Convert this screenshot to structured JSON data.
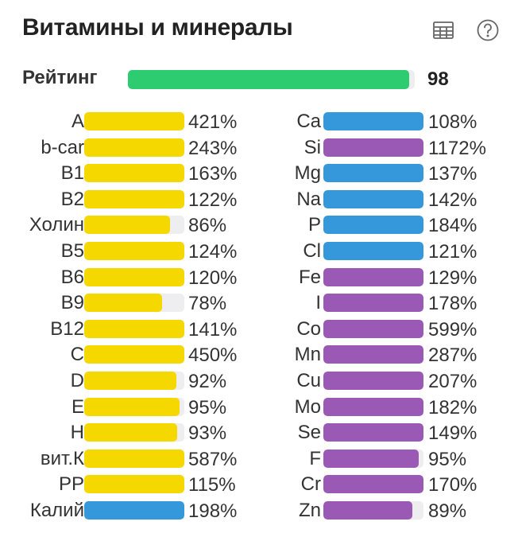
{
  "header": {
    "title": "Витамины и минералы",
    "table_icon": "table-icon",
    "help_icon": "help-circle-icon"
  },
  "rating": {
    "label": "Рейтинг",
    "value": "98",
    "fraction": 0.98,
    "color": "#2ecc71"
  },
  "colors": {
    "vitamin": "#f5d800",
    "electrolyte": "#3498db",
    "mineral": "#9b59b6",
    "track": "#eeeef0"
  },
  "vitamins": [
    {
      "name": "A",
      "percent": "421%",
      "fill": 1.0,
      "color": "#f5d800"
    },
    {
      "name": "b-car",
      "percent": "243%",
      "fill": 1.0,
      "color": "#f5d800"
    },
    {
      "name": "B1",
      "percent": "163%",
      "fill": 1.0,
      "color": "#f5d800"
    },
    {
      "name": "B2",
      "percent": "122%",
      "fill": 1.0,
      "color": "#f5d800"
    },
    {
      "name": "Холин",
      "percent": "86%",
      "fill": 0.86,
      "color": "#f5d800"
    },
    {
      "name": "B5",
      "percent": "124%",
      "fill": 1.0,
      "color": "#f5d800"
    },
    {
      "name": "B6",
      "percent": "120%",
      "fill": 1.0,
      "color": "#f5d800"
    },
    {
      "name": "B9",
      "percent": "78%",
      "fill": 0.78,
      "color": "#f5d800"
    },
    {
      "name": "B12",
      "percent": "141%",
      "fill": 1.0,
      "color": "#f5d800"
    },
    {
      "name": "C",
      "percent": "450%",
      "fill": 1.0,
      "color": "#f5d800"
    },
    {
      "name": "D",
      "percent": "92%",
      "fill": 0.92,
      "color": "#f5d800"
    },
    {
      "name": "E",
      "percent": "95%",
      "fill": 0.95,
      "color": "#f5d800"
    },
    {
      "name": "H",
      "percent": "93%",
      "fill": 0.93,
      "color": "#f5d800"
    },
    {
      "name": "вит.К",
      "percent": "587%",
      "fill": 1.0,
      "color": "#f5d800"
    },
    {
      "name": "PP",
      "percent": "115%",
      "fill": 1.0,
      "color": "#f5d800"
    },
    {
      "name": "Калий",
      "percent": "198%",
      "fill": 1.0,
      "color": "#3498db"
    }
  ],
  "minerals": [
    {
      "name": "Ca",
      "percent": "108%",
      "fill": 1.0,
      "color": "#3498db"
    },
    {
      "name": "Si",
      "percent": "1172%",
      "fill": 1.0,
      "color": "#9b59b6"
    },
    {
      "name": "Mg",
      "percent": "137%",
      "fill": 1.0,
      "color": "#3498db"
    },
    {
      "name": "Na",
      "percent": "142%",
      "fill": 1.0,
      "color": "#3498db"
    },
    {
      "name": "P",
      "percent": "184%",
      "fill": 1.0,
      "color": "#3498db"
    },
    {
      "name": "Cl",
      "percent": "121%",
      "fill": 1.0,
      "color": "#3498db"
    },
    {
      "name": "Fe",
      "percent": "129%",
      "fill": 1.0,
      "color": "#9b59b6"
    },
    {
      "name": "I",
      "percent": "178%",
      "fill": 1.0,
      "color": "#9b59b6"
    },
    {
      "name": "Co",
      "percent": "599%",
      "fill": 1.0,
      "color": "#9b59b6"
    },
    {
      "name": "Mn",
      "percent": "287%",
      "fill": 1.0,
      "color": "#9b59b6"
    },
    {
      "name": "Cu",
      "percent": "207%",
      "fill": 1.0,
      "color": "#9b59b6"
    },
    {
      "name": "Mo",
      "percent": "182%",
      "fill": 1.0,
      "color": "#9b59b6"
    },
    {
      "name": "Se",
      "percent": "149%",
      "fill": 1.0,
      "color": "#9b59b6"
    },
    {
      "name": "F",
      "percent": "95%",
      "fill": 0.95,
      "color": "#9b59b6"
    },
    {
      "name": "Cr",
      "percent": "170%",
      "fill": 1.0,
      "color": "#9b59b6"
    },
    {
      "name": "Zn",
      "percent": "89%",
      "fill": 0.89,
      "color": "#9b59b6"
    }
  ]
}
